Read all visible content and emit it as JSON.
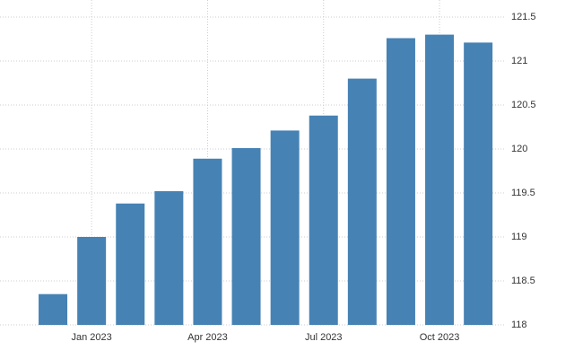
{
  "chart_data": {
    "type": "bar",
    "categories": [
      null,
      "Jan 2023",
      null,
      null,
      "Apr 2023",
      null,
      null,
      "Jul 2023",
      null,
      null,
      "Oct 2023",
      null
    ],
    "values": [
      118.35,
      119.0,
      119.38,
      119.52,
      119.89,
      120.01,
      120.21,
      120.38,
      120.8,
      121.26,
      121.3,
      121.21
    ],
    "color": "#4682b4",
    "ylim": [
      118,
      121.5
    ],
    "yticks": [
      118,
      118.5,
      119,
      119.5,
      120,
      120.5,
      121,
      121.5
    ],
    "grid": true
  }
}
